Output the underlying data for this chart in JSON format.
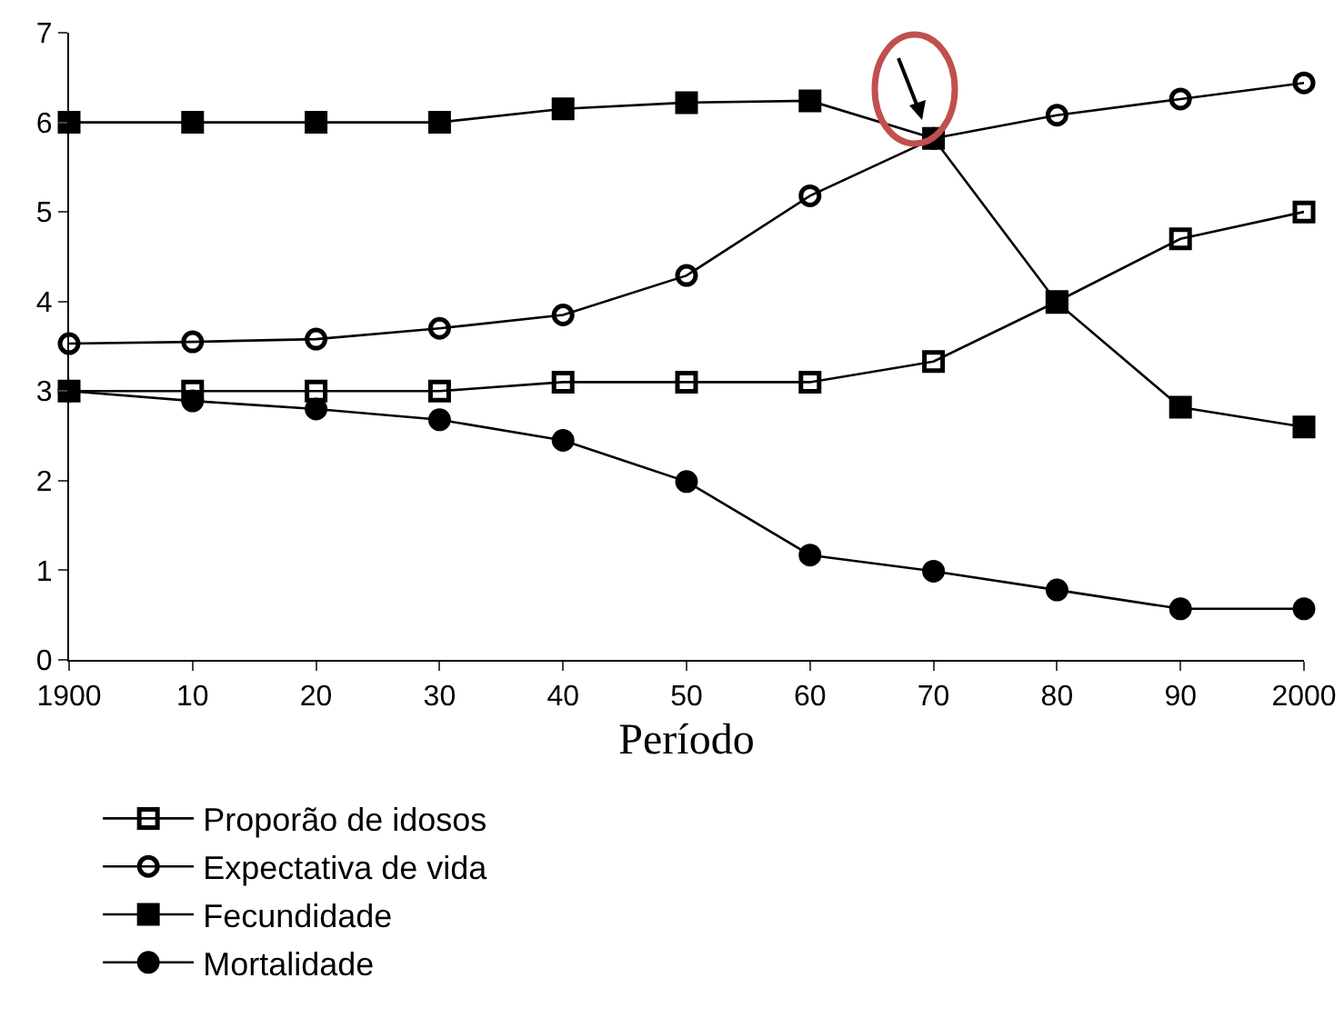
{
  "chart_data": {
    "type": "line",
    "xlabel": "Período",
    "x": [
      1900,
      1910,
      1920,
      1930,
      1940,
      1950,
      1960,
      1970,
      1980,
      1990,
      2000
    ],
    "xlim": [
      1900,
      2000
    ],
    "xticks": [
      1900,
      {
        "value": 1910,
        "label": "10"
      },
      {
        "value": 1920,
        "label": "20"
      },
      {
        "value": 1930,
        "label": "30"
      },
      {
        "value": 1940,
        "label": "40"
      },
      {
        "value": 1950,
        "label": "50"
      },
      {
        "value": 1960,
        "label": "60"
      },
      {
        "value": 1970,
        "label": "70"
      },
      {
        "value": 1980,
        "label": "80"
      },
      {
        "value": 1990,
        "label": "90"
      },
      2000
    ],
    "ylim": [
      0,
      7
    ],
    "yticks": [
      0,
      1,
      2,
      3,
      4,
      5,
      6,
      7
    ],
    "grid": false,
    "legend": "bottom",
    "line_style": "solid",
    "series": [
      {
        "name": "Proporão de idosos",
        "color": "#000000",
        "marker": "square-open",
        "values": [
          3,
          3,
          3,
          3,
          3.1,
          3.1,
          3.1,
          3.33,
          4,
          4.7,
          5
        ]
      },
      {
        "name": "Expectativa de vida",
        "color": "#000000",
        "marker": "circle-open",
        "values": [
          3.53,
          3.55,
          3.58,
          3.7,
          3.85,
          4.29,
          5.18,
          5.82,
          6.08,
          6.26,
          6.44
        ]
      },
      {
        "name": "Fecundidade",
        "color": "#000000",
        "marker": "square",
        "values": [
          6,
          6,
          6,
          6,
          6.15,
          6.22,
          6.24,
          5.82,
          3.99,
          2.82,
          2.6
        ]
      },
      {
        "name": "Mortalidade",
        "color": "#000000",
        "marker": "circle",
        "values": [
          3,
          2.89,
          2.8,
          2.68,
          2.45,
          1.99,
          1.17,
          0.99,
          0.78,
          0.57,
          0.57
        ]
      }
    ]
  }
}
